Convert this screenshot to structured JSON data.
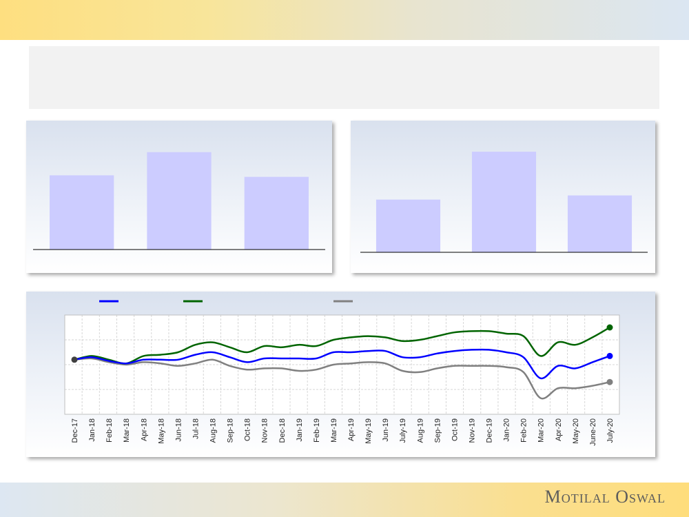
{
  "brand": {
    "name": "Motilal Oswal"
  },
  "chart_data": [
    {
      "type": "bar",
      "categories": [
        "",
        "",
        ""
      ],
      "values": [
        96,
        126,
        94
      ],
      "ylim": [
        0,
        140
      ],
      "color": "#ccccff"
    },
    {
      "type": "bar",
      "categories": [
        "",
        "",
        ""
      ],
      "values": [
        76,
        145,
        82
      ],
      "ylim": [
        0,
        160
      ],
      "color": "#ccccff"
    },
    {
      "type": "line",
      "x": [
        "Dec-17",
        "Jan-18",
        "Feb-18",
        "Mar-18",
        "Apr-18",
        "May-18",
        "Jun-18",
        "Jul-18",
        "Aug-18",
        "Sep-18",
        "Oct-18",
        "Nov-18",
        "Dec-18",
        "Jan-19",
        "Feb-19",
        "Mar-19",
        "Apr-19",
        "May-19",
        "Jun-19",
        "July-19",
        "Aug-19",
        "Sep-19",
        "Oct-19",
        "Nov-19",
        "Dec-19",
        "Jan-20",
        "Feb-20",
        "Mar-20",
        "Apr-20",
        "May-20",
        "June-20",
        "July-20"
      ],
      "ylim": [
        0,
        4
      ],
      "grid": true,
      "series": [
        {
          "color": "#0000ff",
          "values": [
            2.2,
            2.3,
            2.15,
            2.05,
            2.2,
            2.2,
            2.2,
            2.4,
            2.5,
            2.3,
            2.1,
            2.25,
            2.25,
            2.25,
            2.25,
            2.5,
            2.5,
            2.55,
            2.55,
            2.3,
            2.3,
            2.45,
            2.55,
            2.6,
            2.6,
            2.5,
            2.3,
            1.45,
            1.95,
            1.85,
            2.1,
            2.35
          ]
        },
        {
          "color": "#006400",
          "values": [
            2.2,
            2.35,
            2.2,
            2.05,
            2.35,
            2.4,
            2.5,
            2.8,
            2.9,
            2.7,
            2.5,
            2.75,
            2.7,
            2.8,
            2.75,
            3.0,
            3.1,
            3.15,
            3.1,
            2.95,
            3.0,
            3.15,
            3.3,
            3.35,
            3.35,
            3.25,
            3.15,
            2.35,
            2.9,
            2.8,
            3.1,
            3.5
          ]
        },
        {
          "color": "#808080",
          "values": [
            2.2,
            2.25,
            2.1,
            2.0,
            2.1,
            2.05,
            1.95,
            2.05,
            2.2,
            1.95,
            1.8,
            1.85,
            1.85,
            1.75,
            1.8,
            2.0,
            2.05,
            2.1,
            2.05,
            1.75,
            1.7,
            1.85,
            1.95,
            1.95,
            1.95,
            1.9,
            1.7,
            0.65,
            1.05,
            1.05,
            1.15,
            1.3
          ]
        }
      ]
    }
  ]
}
